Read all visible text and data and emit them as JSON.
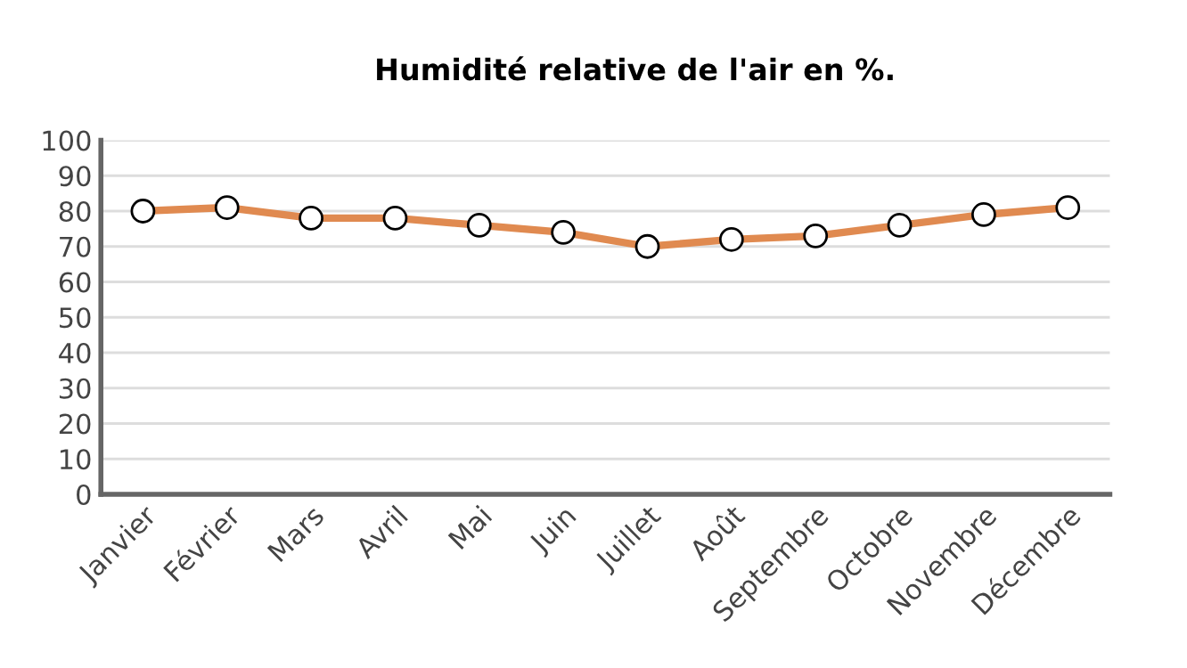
{
  "chart_data": {
    "type": "line",
    "title": "Humidité relative de l'air en %.",
    "categories": [
      "Janvier",
      "Février",
      "Mars",
      "Avril",
      "Mai",
      "Juin",
      "Juillet",
      "Août",
      "Septembre",
      "Octobre",
      "Novembre",
      "Décembre"
    ],
    "series": [
      {
        "color": "#e08a50",
        "values": [
          80,
          81,
          78,
          78,
          76,
          74,
          70,
          72,
          73,
          76,
          79,
          81
        ]
      }
    ],
    "ylim": [
      0,
      100
    ],
    "yticks": [
      0,
      10,
      20,
      30,
      40,
      50,
      60,
      70,
      80,
      90,
      100
    ],
    "grid": "y",
    "marker": "circle",
    "line_style": "solid"
  }
}
